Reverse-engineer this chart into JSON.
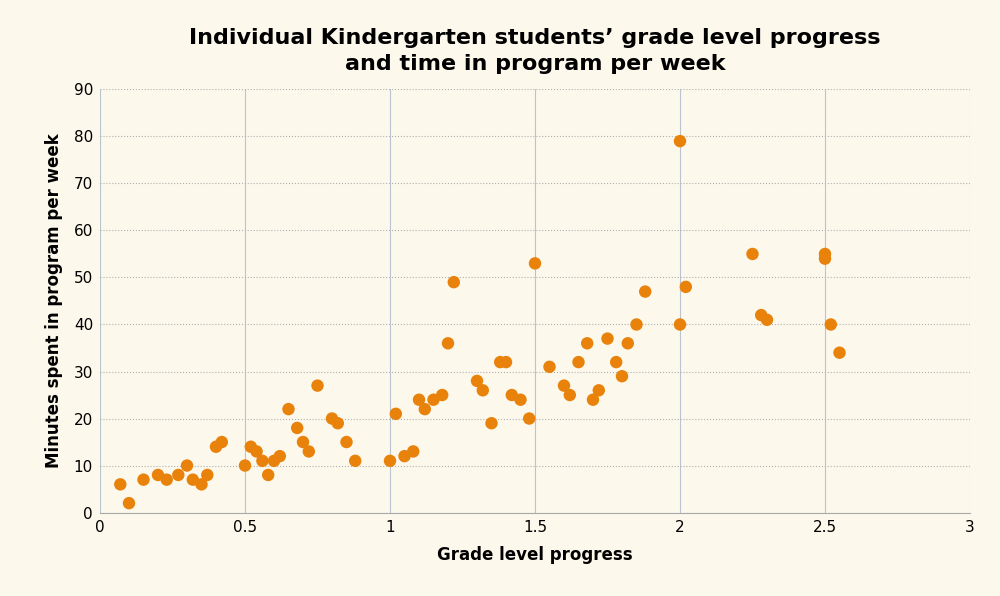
{
  "title": "Individual Kindergarten students’ grade level progress\nand time in program per week",
  "xlabel": "Grade level progress",
  "ylabel": "Minutes spent in program per week",
  "background_color": "#fdf8ec",
  "dot_color": "#e8820a",
  "xlim": [
    0,
    3
  ],
  "ylim": [
    0,
    90
  ],
  "xticks": [
    0,
    0.5,
    1.0,
    1.5,
    2.0,
    2.5,
    3.0
  ],
  "xtick_labels": [
    "0",
    "0.5",
    "1",
    "1.5",
    "2",
    "2.5",
    "3"
  ],
  "yticks": [
    0,
    10,
    20,
    30,
    40,
    50,
    60,
    70,
    80,
    90
  ],
  "x": [
    0.07,
    0.1,
    0.15,
    0.2,
    0.23,
    0.27,
    0.3,
    0.32,
    0.35,
    0.37,
    0.4,
    0.42,
    0.5,
    0.52,
    0.54,
    0.56,
    0.58,
    0.6,
    0.62,
    0.65,
    0.68,
    0.7,
    0.72,
    0.75,
    0.8,
    0.82,
    0.85,
    0.88,
    1.0,
    1.02,
    1.05,
    1.08,
    1.1,
    1.12,
    1.15,
    1.18,
    1.2,
    1.22,
    1.3,
    1.32,
    1.35,
    1.38,
    1.4,
    1.42,
    1.45,
    1.48,
    1.5,
    1.55,
    1.6,
    1.62,
    1.65,
    1.68,
    1.7,
    1.72,
    1.75,
    1.78,
    1.8,
    1.82,
    1.85,
    1.88,
    2.0,
    2.0,
    2.02,
    2.25,
    2.28,
    2.3,
    2.5,
    2.5,
    2.52,
    2.55
  ],
  "y": [
    6,
    2,
    7,
    8,
    7,
    8,
    10,
    7,
    6,
    8,
    14,
    15,
    10,
    14,
    13,
    11,
    8,
    11,
    12,
    22,
    18,
    15,
    13,
    27,
    20,
    19,
    15,
    11,
    11,
    21,
    12,
    13,
    24,
    22,
    24,
    25,
    36,
    49,
    28,
    26,
    19,
    32,
    32,
    25,
    24,
    20,
    53,
    31,
    27,
    25,
    32,
    36,
    24,
    26,
    37,
    32,
    29,
    36,
    40,
    47,
    79,
    40,
    48,
    55,
    42,
    41,
    54,
    55,
    40,
    34
  ],
  "marker_size": 80,
  "title_fontsize": 16,
  "axis_label_fontsize": 12,
  "tick_fontsize": 11,
  "vgrid_color": "#b8c4d0",
  "hgrid_color": "#b0b0b0"
}
